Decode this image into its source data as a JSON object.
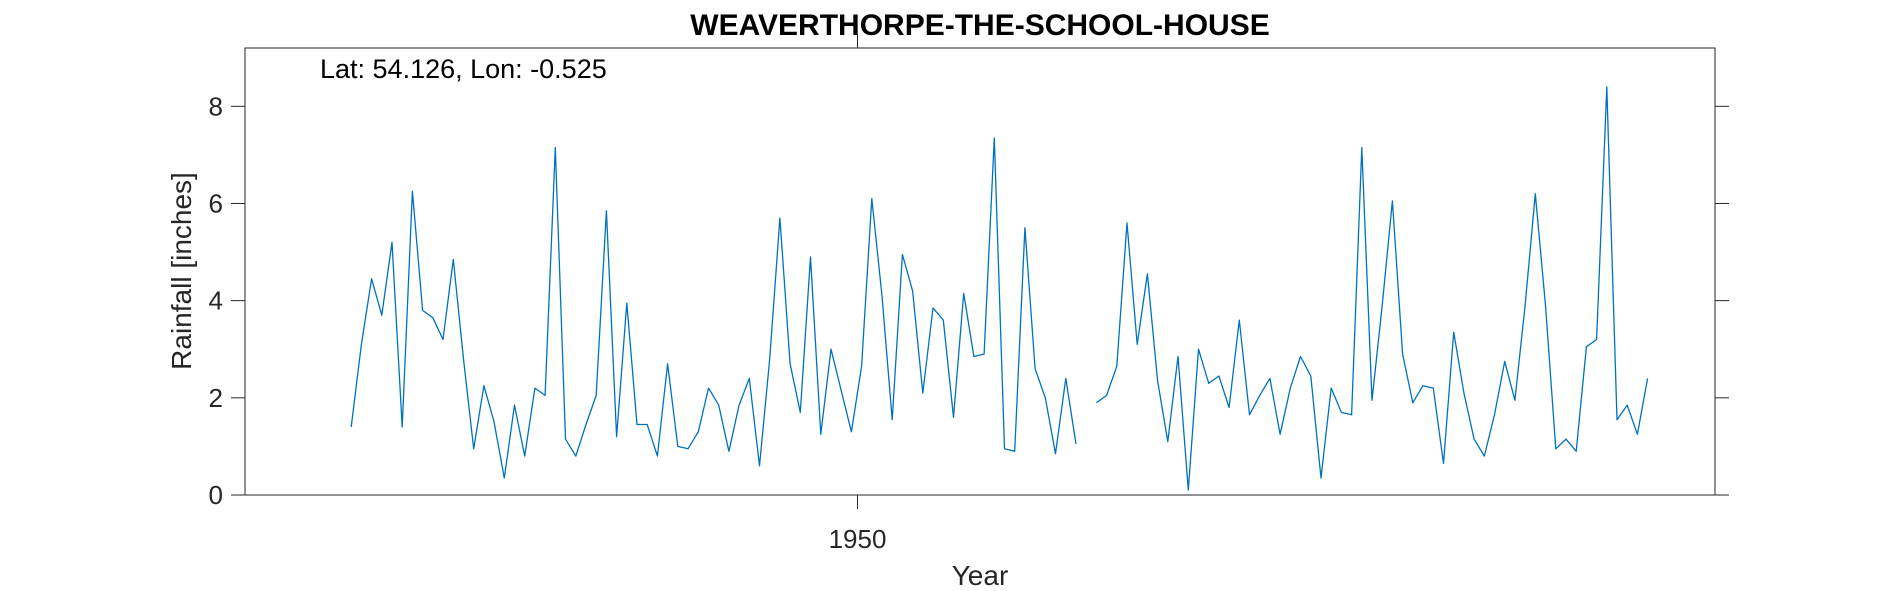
{
  "chart_data": {
    "type": "line",
    "title": "WEAVERTHORPE-THE-SCHOOL-HOUSE",
    "annotation": "Lat: 54.126, Lon: -0.525",
    "xlabel": "Year",
    "ylabel": "Rainfall [inches]",
    "xlim": [
      1920,
      1992
    ],
    "ylim": [
      0,
      9.2
    ],
    "x_ticks": [
      {
        "value": 1950,
        "label": "1950"
      }
    ],
    "y_ticks": [
      {
        "value": 0,
        "label": "0"
      },
      {
        "value": 2,
        "label": "2"
      },
      {
        "value": 4,
        "label": "4"
      },
      {
        "value": 6,
        "label": "6"
      },
      {
        "value": 8,
        "label": "8"
      }
    ],
    "grid": false,
    "box": true,
    "line_color": "#0072BD",
    "series": [
      {
        "x_start": 1925.2,
        "x_step": 0.5,
        "values": [
          1.4,
          3.1,
          4.45,
          3.7,
          5.2,
          1.4,
          6.25,
          3.8,
          3.65,
          3.2,
          4.85,
          2.8,
          0.95,
          2.25,
          1.5,
          0.35,
          1.85,
          0.8,
          2.2,
          2.05,
          7.15,
          1.15,
          0.8,
          1.45,
          2.05,
          5.85,
          1.2,
          3.95,
          1.45,
          1.45,
          0.8,
          2.7,
          1.0,
          0.95,
          1.3,
          2.2,
          1.85,
          0.9,
          1.85,
          2.4,
          0.6,
          2.8,
          5.7,
          2.7,
          1.7,
          4.9,
          1.25,
          3.0,
          2.15,
          1.3,
          2.65,
          6.1,
          4.1,
          1.55,
          4.95,
          4.2,
          2.1,
          3.85,
          3.6,
          1.6,
          4.15,
          2.85,
          2.9,
          7.35,
          0.95,
          0.9,
          5.5,
          2.6,
          2.0,
          0.85,
          2.4,
          1.05,
          null,
          1.9,
          2.05,
          2.65,
          5.6,
          3.1,
          4.55,
          2.35,
          1.1,
          2.85,
          0.1,
          3.0,
          2.3,
          2.45,
          1.8,
          3.6,
          1.65,
          2.05,
          2.4,
          1.25,
          2.2,
          2.85,
          2.45,
          0.35,
          2.2,
          1.7,
          1.65,
          7.15,
          1.95,
          3.9,
          6.05,
          2.9,
          1.9,
          2.25,
          2.2,
          0.65,
          3.35,
          2.1,
          1.15,
          0.8,
          1.65,
          2.75,
          1.95,
          3.9,
          6.2,
          3.9,
          0.95,
          1.15,
          0.9,
          3.05,
          3.2,
          8.4,
          1.55,
          1.85,
          1.25,
          2.4
        ]
      }
    ]
  }
}
